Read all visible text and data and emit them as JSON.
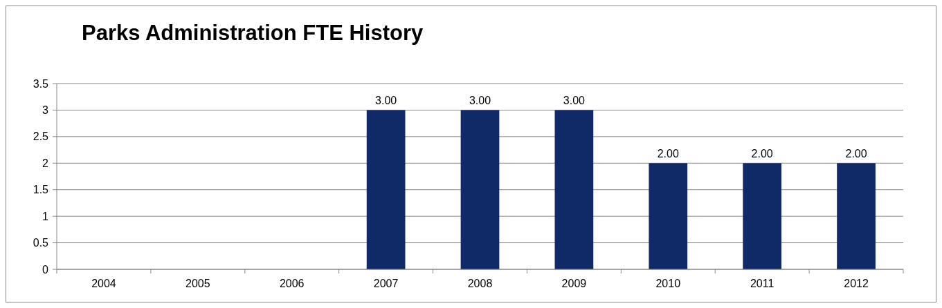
{
  "chart_data": {
    "type": "bar",
    "title": "Parks Administration FTE History",
    "categories": [
      "2004",
      "2005",
      "2006",
      "2007",
      "2008",
      "2009",
      "2010",
      "2011",
      "2012"
    ],
    "values": [
      null,
      null,
      null,
      3,
      3,
      3,
      2,
      2,
      2
    ],
    "value_labels": [
      null,
      null,
      null,
      "3.00",
      "3.00",
      "3.00",
      "2.00",
      "2.00",
      "2.00"
    ],
    "color": "#0f2a66",
    "ylim": [
      0,
      3.5
    ],
    "yticks": [
      0,
      0.5,
      1,
      1.5,
      2,
      2.5,
      3,
      3.5
    ],
    "grid": "y"
  }
}
